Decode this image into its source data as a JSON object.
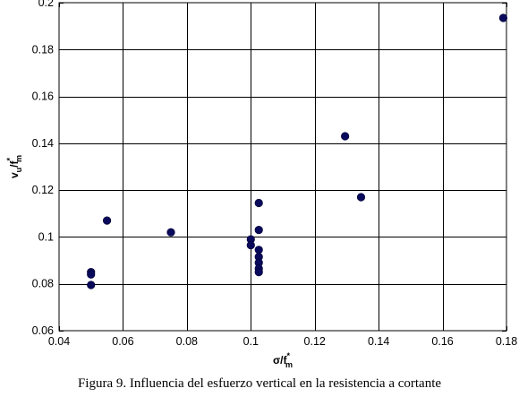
{
  "chart_data": {
    "type": "scatter",
    "title": "",
    "xlabel": {
      "base": "σ/f",
      "sup": "*",
      "sub": "m"
    },
    "ylabel": {
      "base": "v",
      "sub1": "u",
      "mid": "/f",
      "sup": "*",
      "sub2": "m"
    },
    "xlim": [
      0.04,
      0.18
    ],
    "ylim": [
      0.06,
      0.2
    ],
    "xticks": [
      0.04,
      0.06,
      0.08,
      0.1,
      0.12,
      0.14,
      0.16,
      0.18
    ],
    "yticks": [
      0.06,
      0.08,
      0.1,
      0.12,
      0.14,
      0.16,
      0.18,
      0.2
    ],
    "xtick_labels": [
      "0.04",
      "0.06",
      "0.08",
      "0.1",
      "0.12",
      "0.14",
      "0.16",
      "0.18"
    ],
    "ytick_labels": [
      "0.06",
      "0.08",
      "0.1",
      "0.12",
      "0.14",
      "0.16",
      "0.18",
      "0.2"
    ],
    "grid": true,
    "marker_color": "#0a0a5c",
    "points": [
      {
        "x": 0.05,
        "y": 0.085
      },
      {
        "x": 0.05,
        "y": 0.084
      },
      {
        "x": 0.05,
        "y": 0.0795
      },
      {
        "x": 0.055,
        "y": 0.107
      },
      {
        "x": 0.075,
        "y": 0.102
      },
      {
        "x": 0.1,
        "y": 0.099
      },
      {
        "x": 0.1,
        "y": 0.0965
      },
      {
        "x": 0.1025,
        "y": 0.1145
      },
      {
        "x": 0.1025,
        "y": 0.103
      },
      {
        "x": 0.1025,
        "y": 0.0945
      },
      {
        "x": 0.1025,
        "y": 0.0915
      },
      {
        "x": 0.1025,
        "y": 0.089
      },
      {
        "x": 0.1025,
        "y": 0.0865
      },
      {
        "x": 0.1025,
        "y": 0.085
      },
      {
        "x": 0.1295,
        "y": 0.143
      },
      {
        "x": 0.1345,
        "y": 0.117
      },
      {
        "x": 0.179,
        "y": 0.1935
      }
    ]
  },
  "caption": "Figura 9. Influencia del esfuerzo vertical en la resistencia a cortante"
}
